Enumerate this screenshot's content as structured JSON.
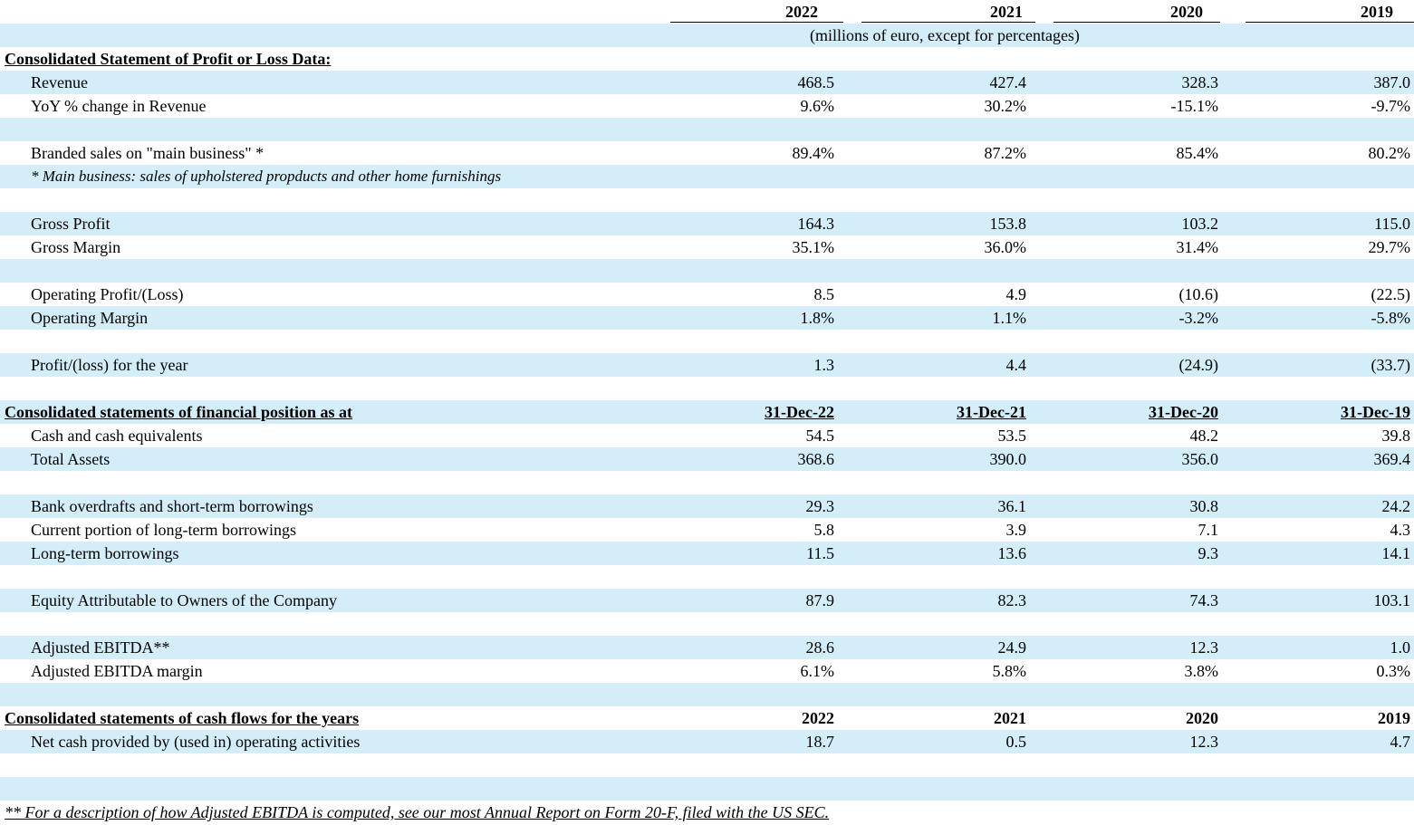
{
  "header": {
    "years": [
      "2022",
      "2021",
      "2020",
      "2019"
    ],
    "subtitle": "(millions of euro, except for percentages)"
  },
  "profit_loss": {
    "section_title": "Consolidated Statement of Profit or Loss Data:",
    "revenue": {
      "label": "Revenue",
      "values": [
        "468.5",
        "427.4",
        "328.3",
        "387.0"
      ]
    },
    "yoy": {
      "label": "YoY % change in Revenue",
      "values": [
        "9.6%",
        "30.2%",
        "-15.1%",
        "-9.7%"
      ]
    },
    "branded": {
      "label": "Branded sales on \"main business\" *",
      "values": [
        "89.4%",
        "87.2%",
        "85.4%",
        "80.2%"
      ]
    },
    "branded_note": "* Main business: sales of upholstered propducts and other home furnishings",
    "gross_profit": {
      "label": "Gross Profit",
      "values": [
        "164.3",
        "153.8",
        "103.2",
        "115.0"
      ]
    },
    "gross_margin": {
      "label": "Gross Margin",
      "values": [
        "35.1%",
        "36.0%",
        "31.4%",
        "29.7%"
      ]
    },
    "operating_profit": {
      "label": "Operating Profit/(Loss)",
      "values": [
        "8.5",
        "4.9",
        "(10.6)",
        "(22.5)"
      ]
    },
    "operating_margin": {
      "label": "Operating Margin",
      "values": [
        "1.8%",
        "1.1%",
        "-3.2%",
        "-5.8%"
      ]
    },
    "profit_year": {
      "label": "Profit/(loss) for the year",
      "values": [
        "1.3",
        "4.4",
        "(24.9)",
        "(33.7)"
      ]
    }
  },
  "financial_position": {
    "section_title": "Consolidated statements of financial position as at",
    "dates": [
      "31-Dec-22",
      "31-Dec-21",
      "31-Dec-20",
      "31-Dec-19"
    ],
    "cash": {
      "label": "Cash and cash equivalents",
      "values": [
        "54.5",
        "53.5",
        "48.2",
        "39.8"
      ]
    },
    "total_assets": {
      "label": "Total Assets",
      "values": [
        "368.6",
        "390.0",
        "356.0",
        "369.4"
      ]
    },
    "bank_overdrafts": {
      "label": "Bank overdrafts and short-term borrowings",
      "values": [
        "29.3",
        "36.1",
        "30.8",
        "24.2"
      ]
    },
    "current_ltb": {
      "label": "Current portion of long-term borrowings",
      "values": [
        "5.8",
        "3.9",
        "7.1",
        "4.3"
      ]
    },
    "ltb": {
      "label": "Long-term borrowings",
      "values": [
        "11.5",
        "13.6",
        "9.3",
        "14.1"
      ]
    },
    "equity": {
      "label": "Equity Attributable to Owners of the Company",
      "values": [
        "87.9",
        "82.3",
        "74.3",
        "103.1"
      ]
    },
    "adj_ebitda": {
      "label": "Adjusted EBITDA**",
      "values": [
        "28.6",
        "24.9",
        "12.3",
        "1.0"
      ]
    },
    "adj_ebitda_margin": {
      "label": "Adjusted EBITDA margin",
      "values": [
        "6.1%",
        "5.8%",
        "3.8%",
        "0.3%"
      ]
    }
  },
  "cash_flows": {
    "section_title": "Consolidated statements of cash flows for the years",
    "years": [
      "2022",
      "2021",
      "2020",
      "2019"
    ],
    "operating": {
      "label": "Net cash provided by (used in) operating activities",
      "values": [
        "18.7",
        "0.5",
        "12.3",
        "4.7"
      ]
    }
  },
  "footnote": "** For a description of how Adjusted EBITDA is computed, see our most Annual Report on Form 20-F, filed with the US SEC."
}
